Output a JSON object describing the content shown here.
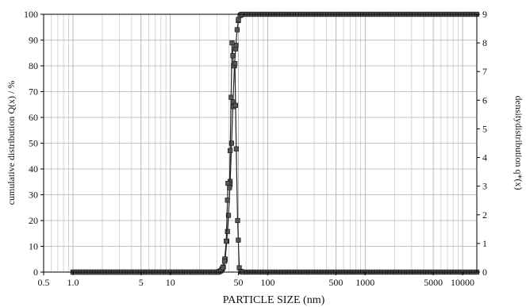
{
  "chart_data": {
    "type": "line",
    "xlabel": "PARTICLE SIZE (nm)",
    "ylabel_left": "cumulative distribution Q(x) / %",
    "ylabel_right": "densitydistribution q*(x)",
    "x_scale": "log",
    "xlim": [
      0.5,
      14000
    ],
    "ylim_left": [
      0,
      100
    ],
    "ylim_right": [
      0,
      9
    ],
    "x_ticks": [
      {
        "value": 0.5,
        "label": "0.5"
      },
      {
        "value": 1.0,
        "label": "1.0"
      },
      {
        "value": 5,
        "label": "5"
      },
      {
        "value": 10,
        "label": "10"
      },
      {
        "value": 50,
        "label": "50"
      },
      {
        "value": 100,
        "label": "100"
      },
      {
        "value": 500,
        "label": "500"
      },
      {
        "value": 1000,
        "label": "1000"
      },
      {
        "value": 5000,
        "label": "5000"
      },
      {
        "value": 10000,
        "label": "10000"
      }
    ],
    "y_ticks_left": [
      "0",
      "10",
      "20",
      "30",
      "40",
      "50",
      "60",
      "70",
      "80",
      "90",
      "100"
    ],
    "y_ticks_right": [
      "0",
      "1",
      "2",
      "3",
      "4",
      "5",
      "6",
      "7",
      "8",
      "9"
    ],
    "grid": true,
    "series": [
      {
        "axis": "left",
        "color": "#222222",
        "points": [
          [
            1.0,
            0
          ],
          [
            31,
            0
          ],
          [
            33,
            0.5
          ],
          [
            35,
            2
          ],
          [
            36.5,
            5
          ],
          [
            38,
            12
          ],
          [
            39.5,
            22
          ],
          [
            41,
            34
          ],
          [
            42.5,
            50
          ],
          [
            44,
            66
          ],
          [
            45.5,
            80
          ],
          [
            47,
            88
          ],
          [
            48.5,
            94
          ],
          [
            50,
            98
          ],
          [
            52,
            99.5
          ],
          [
            54,
            100
          ],
          [
            14000,
            100
          ]
        ]
      },
      {
        "axis": "right",
        "color": "#222222",
        "points": [
          [
            1.0,
            0
          ],
          [
            31,
            0
          ],
          [
            33,
            0.05
          ],
          [
            34.5,
            0.15
          ],
          [
            36,
            0.38
          ],
          [
            37.5,
            1.08
          ],
          [
            39,
            3.1
          ],
          [
            40.5,
            2.95
          ],
          [
            42,
            6.1
          ],
          [
            43,
            8.0
          ],
          [
            44.5,
            7.2
          ],
          [
            46,
            7.28
          ],
          [
            47.5,
            4.3
          ],
          [
            49,
            1.8
          ],
          [
            51,
            0.15
          ],
          [
            53,
            0.02
          ],
          [
            55,
            0
          ],
          [
            14000,
            0
          ]
        ]
      }
    ]
  }
}
